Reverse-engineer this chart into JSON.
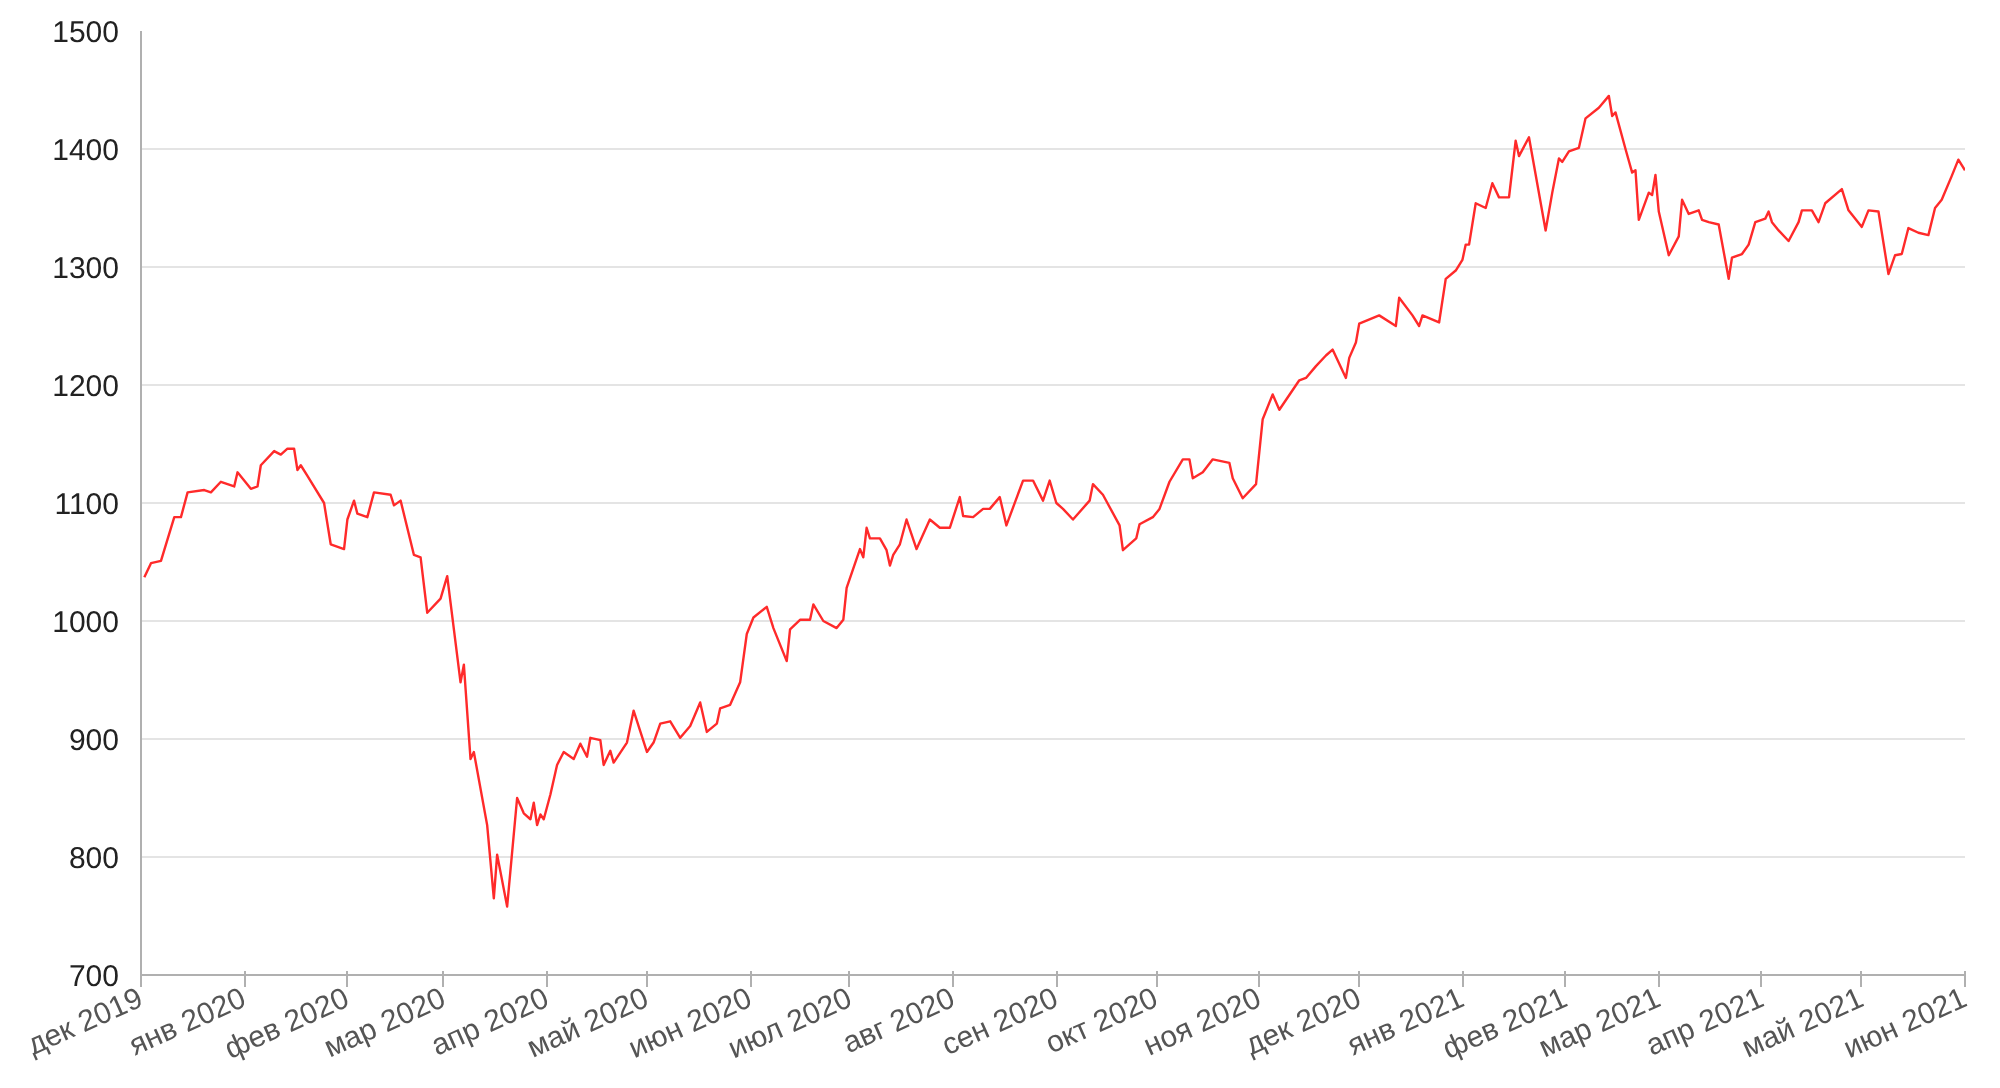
{
  "chart_data": {
    "type": "line",
    "grid": "y",
    "marker": "none",
    "line_style": "solid",
    "xlim": [
      "2019-12-01",
      "2021-06-01"
    ],
    "xticks": [
      {
        "value": "2019-12-01",
        "label": "дек 2019"
      },
      {
        "value": "2020-01-01",
        "label": "янв 2020"
      },
      {
        "value": "2020-02-01",
        "label": "фев 2020"
      },
      {
        "value": "2020-03-01",
        "label": "мар 2020"
      },
      {
        "value": "2020-04-01",
        "label": "апр 2020"
      },
      {
        "value": "2020-05-01",
        "label": "май 2020"
      },
      {
        "value": "2020-06-01",
        "label": "июн 2020"
      },
      {
        "value": "2020-07-01",
        "label": "июл 2020"
      },
      {
        "value": "2020-08-01",
        "label": "авг 2020"
      },
      {
        "value": "2020-09-01",
        "label": "сен 2020"
      },
      {
        "value": "2020-10-01",
        "label": "окт 2020"
      },
      {
        "value": "2020-11-01",
        "label": "ноя 2020"
      },
      {
        "value": "2020-12-01",
        "label": "дек 2020"
      },
      {
        "value": "2021-01-01",
        "label": "янв 2021"
      },
      {
        "value": "2021-02-01",
        "label": "фев 2021"
      },
      {
        "value": "2021-03-01",
        "label": "мар 2021"
      },
      {
        "value": "2021-04-01",
        "label": "апр 2021"
      },
      {
        "value": "2021-05-01",
        "label": "май 2021"
      },
      {
        "value": "2021-06-01",
        "label": "июн 2021"
      }
    ],
    "ylim": [
      700,
      1500
    ],
    "yticks": [
      700,
      800,
      900,
      1000,
      1100,
      1200,
      1300,
      1400,
      1500
    ],
    "series": [
      {
        "color": "#ff2a2a",
        "x": [
          "2019-12-02",
          "2019-12-04",
          "2019-12-07",
          "2019-12-11",
          "2019-12-13",
          "2019-12-15",
          "2019-12-20",
          "2019-12-22",
          "2019-12-25",
          "2019-12-29",
          "2019-12-30",
          "2020-01-03",
          "2020-01-05",
          "2020-01-06",
          "2020-01-10",
          "2020-01-12",
          "2020-01-14",
          "2020-01-16",
          "2020-01-17",
          "2020-01-18",
          "2020-01-20",
          "2020-01-25",
          "2020-01-27",
          "2020-01-31",
          "2020-02-01",
          "2020-02-03",
          "2020-02-04",
          "2020-02-07",
          "2020-02-09",
          "2020-02-14",
          "2020-02-15",
          "2020-02-17",
          "2020-02-21",
          "2020-02-23",
          "2020-02-25",
          "2020-02-29",
          "2020-03-02",
          "2020-03-06",
          "2020-03-07",
          "2020-03-09",
          "2020-03-10",
          "2020-03-14",
          "2020-03-16",
          "2020-03-17",
          "2020-03-20",
          "2020-03-23",
          "2020-03-25",
          "2020-03-27",
          "2020-03-28",
          "2020-03-29",
          "2020-03-30",
          "2020-03-31",
          "2020-04-02",
          "2020-04-04",
          "2020-04-06",
          "2020-04-09",
          "2020-04-11",
          "2020-04-13",
          "2020-04-14",
          "2020-04-17",
          "2020-04-18",
          "2020-04-20",
          "2020-04-21",
          "2020-04-25",
          "2020-04-27",
          "2020-05-01",
          "2020-05-03",
          "2020-05-05",
          "2020-05-08",
          "2020-05-11",
          "2020-05-14",
          "2020-05-17",
          "2020-05-19",
          "2020-05-22",
          "2020-05-23",
          "2020-05-26",
          "2020-05-29",
          "2020-05-31",
          "2020-06-02",
          "2020-06-06",
          "2020-06-08",
          "2020-06-12",
          "2020-06-13",
          "2020-06-16",
          "2020-06-19",
          "2020-06-20",
          "2020-06-23",
          "2020-06-27",
          "2020-06-29",
          "2020-06-30",
          "2020-07-04",
          "2020-07-05",
          "2020-07-06",
          "2020-07-07",
          "2020-07-10",
          "2020-07-12",
          "2020-07-13",
          "2020-07-14",
          "2020-07-16",
          "2020-07-18",
          "2020-07-21",
          "2020-07-25",
          "2020-07-28",
          "2020-07-31",
          "2020-08-03",
          "2020-08-04",
          "2020-08-07",
          "2020-08-10",
          "2020-08-12",
          "2020-08-15",
          "2020-08-17",
          "2020-08-22",
          "2020-08-25",
          "2020-08-28",
          "2020-08-30",
          "2020-09-01",
          "2020-09-03",
          "2020-09-06",
          "2020-09-11",
          "2020-09-12",
          "2020-09-15",
          "2020-09-20",
          "2020-09-21",
          "2020-09-25",
          "2020-09-26",
          "2020-09-30",
          "2020-10-02",
          "2020-10-05",
          "2020-10-09",
          "2020-10-11",
          "2020-10-12",
          "2020-10-15",
          "2020-10-18",
          "2020-10-23",
          "2020-10-24",
          "2020-10-27",
          "2020-10-31",
          "2020-11-02",
          "2020-11-05",
          "2020-11-07",
          "2020-11-13",
          "2020-11-15",
          "2020-11-18",
          "2020-11-21",
          "2020-11-23",
          "2020-11-27",
          "2020-11-28",
          "2020-11-30",
          "2020-12-01",
          "2020-12-07",
          "2020-12-12",
          "2020-12-13",
          "2020-12-17",
          "2020-12-19",
          "2020-12-20",
          "2020-12-25",
          "2020-12-27",
          "2020-12-30",
          "2021-01-01",
          "2021-01-02",
          "2021-01-03",
          "2021-01-05",
          "2021-01-08",
          "2021-01-10",
          "2021-01-12",
          "2021-01-15",
          "2021-01-17",
          "2021-01-18",
          "2021-01-21",
          "2021-01-26",
          "2021-01-28",
          "2021-01-30",
          "2021-01-31",
          "2021-02-02",
          "2021-02-05",
          "2021-02-07",
          "2021-02-11",
          "2021-02-14",
          "2021-02-15",
          "2021-02-16",
          "2021-02-19",
          "2021-02-21",
          "2021-02-22",
          "2021-02-23",
          "2021-02-26",
          "2021-02-27",
          "2021-02-28",
          "2021-03-01",
          "2021-03-04",
          "2021-03-07",
          "2021-03-08",
          "2021-03-10",
          "2021-03-13",
          "2021-03-14",
          "2021-03-16",
          "2021-03-19",
          "2021-03-22",
          "2021-03-23",
          "2021-03-26",
          "2021-03-28",
          "2021-03-30",
          "2021-04-02",
          "2021-04-03",
          "2021-04-04",
          "2021-04-06",
          "2021-04-09",
          "2021-04-12",
          "2021-04-13",
          "2021-04-16",
          "2021-04-18",
          "2021-04-20",
          "2021-04-25",
          "2021-04-27",
          "2021-05-01",
          "2021-05-03",
          "2021-05-06",
          "2021-05-09",
          "2021-05-11",
          "2021-05-13",
          "2021-05-15",
          "2021-05-18",
          "2021-05-21",
          "2021-05-23",
          "2021-05-25",
          "2021-05-28",
          "2021-05-30",
          "2021-06-01"
        ],
        "values": [
          1037,
          1049,
          1051,
          1088,
          1088,
          1109,
          1111,
          1109,
          1118,
          1114,
          1126,
          1112,
          1114,
          1132,
          1144,
          1141,
          1146,
          1146,
          1128,
          1132,
          1123,
          1100,
          1065,
          1061,
          1086,
          1102,
          1091,
          1088,
          1109,
          1107,
          1098,
          1102,
          1056,
          1054,
          1007,
          1019,
          1038,
          948,
          963,
          883,
          889,
          827,
          765,
          802,
          758,
          850,
          837,
          832,
          846,
          827,
          836,
          832,
          853,
          878,
          889,
          883,
          896,
          885,
          901,
          899,
          878,
          890,
          880,
          897,
          924,
          889,
          897,
          913,
          915,
          901,
          911,
          931,
          906,
          913,
          926,
          929,
          948,
          989,
          1003,
          1012,
          994,
          966,
          993,
          1001,
          1001,
          1014,
          1000,
          994,
          1001,
          1028,
          1061,
          1054,
          1079,
          1070,
          1070,
          1060,
          1047,
          1056,
          1065,
          1086,
          1061,
          1086,
          1079,
          1079,
          1105,
          1089,
          1088,
          1095,
          1095,
          1105,
          1081,
          1119,
          1119,
          1102,
          1119,
          1100,
          1095,
          1086,
          1102,
          1116,
          1107,
          1081,
          1060,
          1070,
          1082,
          1088,
          1095,
          1118,
          1137,
          1137,
          1121,
          1126,
          1137,
          1134,
          1121,
          1104,
          1116,
          1171,
          1192,
          1179,
          1204,
          1206,
          1216,
          1225,
          1230,
          1206,
          1223,
          1236,
          1252,
          1259,
          1250,
          1274,
          1259,
          1250,
          1259,
          1253,
          1290,
          1297,
          1306,
          1319,
          1319,
          1354,
          1350,
          1371,
          1359,
          1359,
          1407,
          1394,
          1410,
          1331,
          1363,
          1392,
          1389,
          1398,
          1401,
          1426,
          1435,
          1445,
          1428,
          1431,
          1400,
          1380,
          1382,
          1340,
          1363,
          1361,
          1378,
          1347,
          1310,
          1326,
          1357,
          1345,
          1348,
          1340,
          1338,
          1336,
          1290,
          1308,
          1311,
          1319,
          1338,
          1341,
          1347,
          1338,
          1331,
          1322,
          1338,
          1348,
          1348,
          1338,
          1354,
          1366,
          1348,
          1334,
          1348,
          1347,
          1294,
          1310,
          1311,
          1333,
          1329,
          1327,
          1350,
          1357,
          1377,
          1391,
          1382
        ]
      }
    ]
  }
}
